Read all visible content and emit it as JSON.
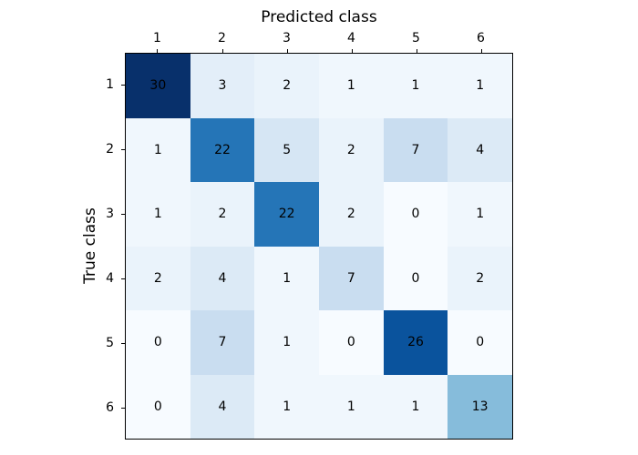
{
  "figure": {
    "background": "#ffffff"
  },
  "chart_data": {
    "type": "heatmap",
    "title": "",
    "xlabel": "Predicted class",
    "ylabel": "True class",
    "x_tick_labels": [
      "1",
      "2",
      "3",
      "4",
      "5",
      "6"
    ],
    "y_tick_labels": [
      "1",
      "2",
      "3",
      "4",
      "5",
      "6"
    ],
    "matrix": [
      [
        30,
        3,
        2,
        1,
        1,
        1
      ],
      [
        1,
        22,
        5,
        2,
        7,
        4
      ],
      [
        1,
        2,
        22,
        2,
        0,
        1
      ],
      [
        2,
        4,
        1,
        7,
        0,
        2
      ],
      [
        0,
        7,
        1,
        0,
        26,
        0
      ],
      [
        0,
        4,
        1,
        1,
        1,
        13
      ]
    ],
    "colormap": "Blues",
    "vmin": 0,
    "vmax": 30,
    "value_colors": {
      "0": "#f7fbff",
      "1": "#f0f7fd",
      "2": "#eaf3fb",
      "3": "#e3eef9",
      "4": "#dceaf6",
      "5": "#d6e6f4",
      "7": "#c9ddf0",
      "13": "#86bcdb",
      "22": "#2575b7",
      "26": "#0a539d",
      "30": "#08306b"
    },
    "cell_text_color": "#000000",
    "axes_border_color": "#000000",
    "grid": false,
    "legend": "none"
  }
}
